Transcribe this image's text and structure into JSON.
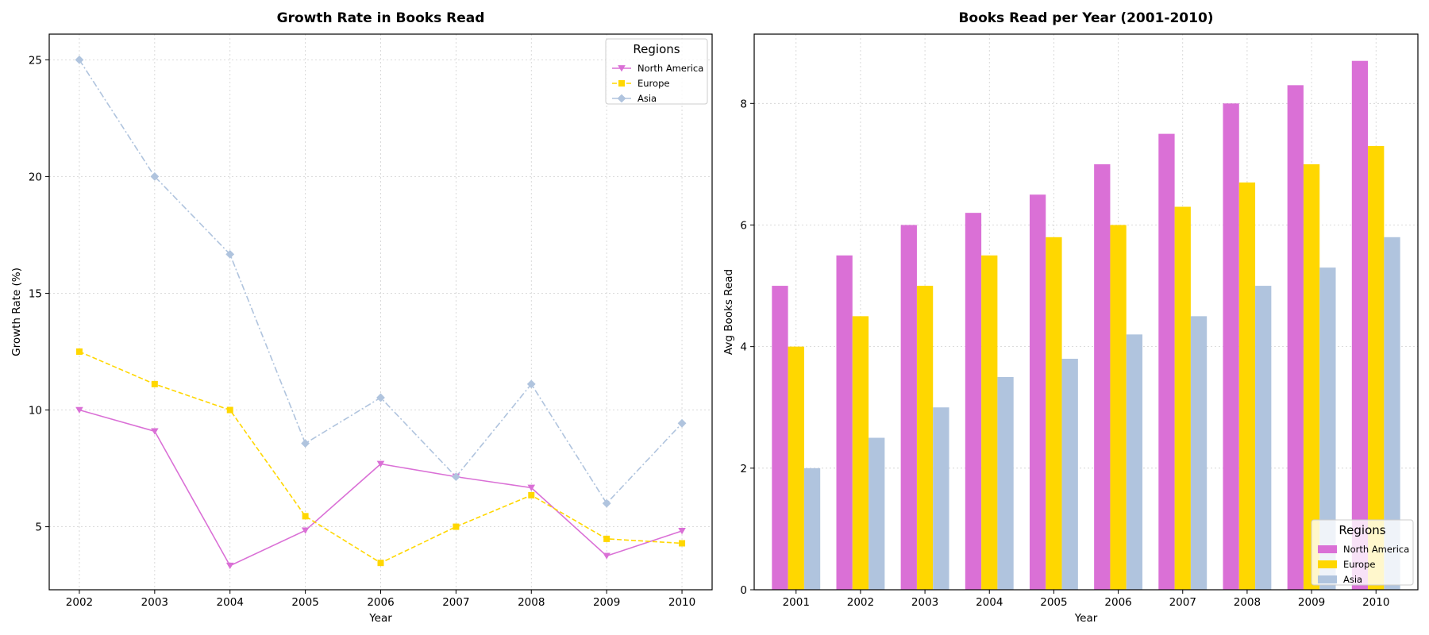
{
  "chart_data": [
    {
      "type": "line",
      "title": "Growth Rate in Books Read",
      "xlabel": "Year",
      "ylabel": "Growth Rate (%)",
      "x": [
        2002,
        2003,
        2004,
        2005,
        2006,
        2007,
        2008,
        2009,
        2010
      ],
      "xlim": [
        2001.6,
        2010.4
      ],
      "ylim": [
        2.3,
        26.1
      ],
      "yticks": [
        5,
        10,
        15,
        20,
        25
      ],
      "grid": true,
      "legend": {
        "title": "Regions",
        "placement": "top-right"
      },
      "series": [
        {
          "name": "North America",
          "color": "#DA70D6",
          "marker": "triangle-down",
          "linestyle": "solid",
          "values": [
            10.0,
            9.09,
            3.33,
            4.84,
            7.69,
            7.14,
            6.67,
            3.75,
            4.82
          ]
        },
        {
          "name": "Europe",
          "color": "#FFD700",
          "marker": "square",
          "linestyle": "dashed",
          "values": [
            12.5,
            11.11,
            10.0,
            5.45,
            3.45,
            5.0,
            6.35,
            4.48,
            4.29
          ]
        },
        {
          "name": "Asia",
          "color": "#B0C4DE",
          "marker": "diamond",
          "linestyle": "dashdot",
          "values": [
            25.0,
            20.0,
            16.67,
            8.57,
            10.53,
            7.14,
            11.11,
            6.0,
            9.43
          ]
        }
      ]
    },
    {
      "type": "bar",
      "title": "Books Read per Year (2001-2010)",
      "xlabel": "Year",
      "ylabel": "Avg Books Read",
      "categories": [
        "2001",
        "2002",
        "2003",
        "2004",
        "2005",
        "2006",
        "2007",
        "2008",
        "2009",
        "2010"
      ],
      "ylim": [
        0,
        9.14
      ],
      "yticks": [
        0,
        2,
        4,
        6,
        8
      ],
      "grid": true,
      "legend": {
        "title": "Regions",
        "placement": "bottom-right"
      },
      "series": [
        {
          "name": "North America",
          "color": "#DA70D6",
          "values": [
            5.0,
            5.5,
            6.0,
            6.2,
            6.5,
            7.0,
            7.5,
            8.0,
            8.3,
            8.7
          ]
        },
        {
          "name": "Europe",
          "color": "#FFD700",
          "values": [
            4.0,
            4.5,
            5.0,
            5.5,
            5.8,
            6.0,
            6.3,
            6.7,
            7.0,
            7.3
          ]
        },
        {
          "name": "Asia",
          "color": "#B0C4DE",
          "values": [
            2.0,
            2.5,
            3.0,
            3.5,
            3.8,
            4.2,
            4.5,
            5.0,
            5.3,
            5.8
          ]
        }
      ]
    }
  ]
}
